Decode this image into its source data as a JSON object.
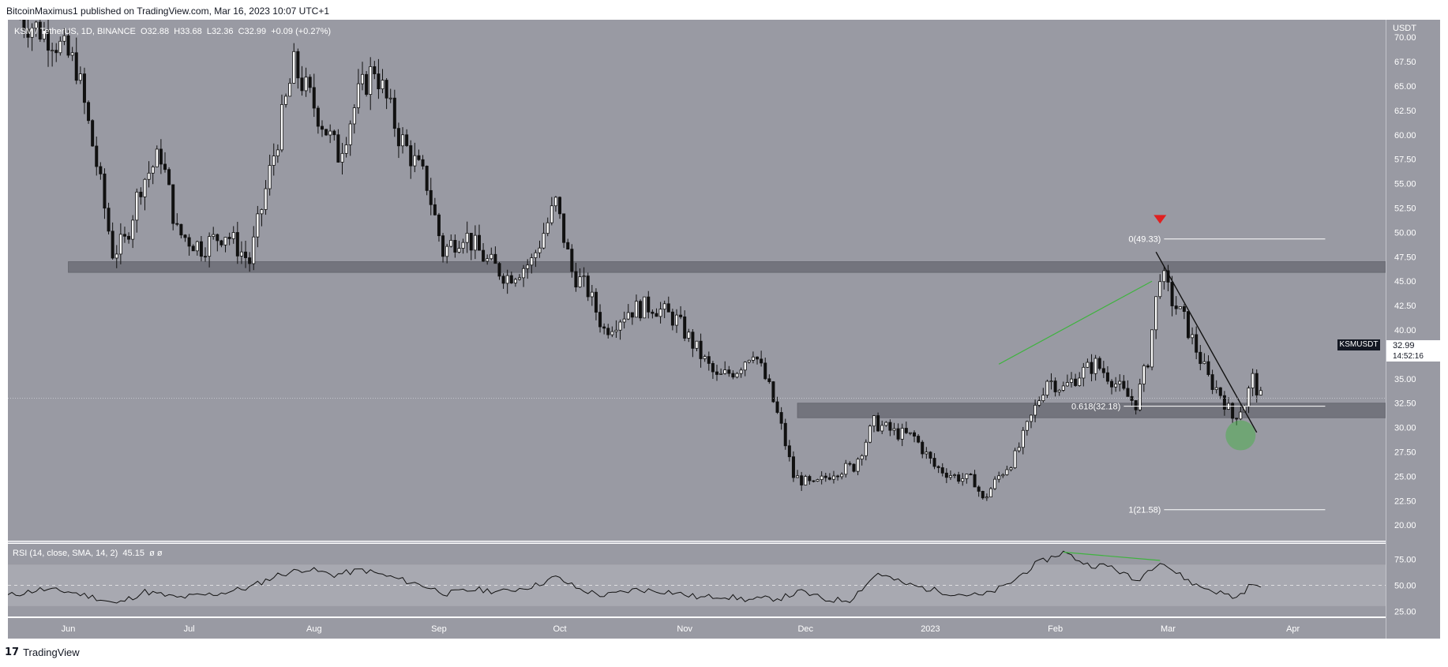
{
  "header": {
    "publisher": "BitcoinMaximus1 published on TradingView.com, Mar 16, 2023 10:07 UTC+1"
  },
  "legend": {
    "symbol": "KSM / TetherUS, 1D, BINANCE",
    "open_label": "O",
    "open": "32.88",
    "high_label": "H",
    "high": "33.68",
    "low_label": "L",
    "low": "32.36",
    "close_label": "C",
    "close": "32.99",
    "change": "+0.09 (+0.27%)"
  },
  "rsi_legend": {
    "label": "RSI (14, close, SMA, 14, 2)",
    "value": "45.15",
    "extra": "ø ø"
  },
  "price_axis": {
    "unit": "USDT",
    "ticker": "KSMUSDT",
    "last_price": "32.99",
    "countdown": "14:52:16"
  },
  "footer": {
    "brand": "TradingView",
    "logo_icon": "tradingview-logo-icon"
  },
  "colors": {
    "panel": "#999aa3",
    "candle": "#111111",
    "zone": "#6f7079",
    "green": "#3fb33f",
    "marker": "#e02020",
    "white": "#ffffff"
  },
  "chart_data": [
    {
      "type": "candlestick",
      "x_ticks": [
        "Jun",
        "Jul",
        "Aug",
        "Sep",
        "Oct",
        "Nov",
        "Dec",
        "2023",
        "Feb",
        "Mar",
        "Apr"
      ],
      "x_ticks_dates": [
        "2022-06-01",
        "2022-07-01",
        "2022-08-01",
        "2022-09-01",
        "2022-10-01",
        "2022-11-01",
        "2022-12-01",
        "2023-01-01",
        "2023-02-01",
        "2023-03-01",
        "2023-04-01"
      ],
      "y_ticks": [
        "20.00",
        "22.50",
        "25.00",
        "27.50",
        "30.00",
        "32.50",
        "35.00",
        "37.50",
        "40.00",
        "42.50",
        "45.00",
        "47.50",
        "50.00",
        "52.50",
        "55.00",
        "57.50",
        "60.00",
        "62.50",
        "65.00",
        "67.50",
        "70.00"
      ],
      "ylim": [
        18.4,
        71.8
      ],
      "xlim": [
        "2022-05-17",
        "2023-04-24"
      ],
      "price_path": [
        [
          "2022-05-20",
          72.0
        ],
        [
          "2022-05-28",
          70.0
        ],
        [
          "2022-06-03",
          67.0
        ],
        [
          "2022-06-08",
          57.0
        ],
        [
          "2022-06-12",
          48.0
        ],
        [
          "2022-06-15",
          49.0
        ],
        [
          "2022-06-19",
          55.0
        ],
        [
          "2022-06-24",
          58.0
        ],
        [
          "2022-06-28",
          50.0
        ],
        [
          "2022-07-04",
          48.5
        ],
        [
          "2022-07-10",
          50.0
        ],
        [
          "2022-07-16",
          47.0
        ],
        [
          "2022-07-22",
          58.0
        ],
        [
          "2022-07-27",
          67.0
        ],
        [
          "2022-08-01",
          63.0
        ],
        [
          "2022-08-07",
          58.0
        ],
        [
          "2022-08-12",
          64.0
        ],
        [
          "2022-08-16",
          67.0
        ],
        [
          "2022-08-22",
          60.0
        ],
        [
          "2022-08-29",
          55.0
        ],
        [
          "2022-09-02",
          48.0
        ],
        [
          "2022-09-07",
          50.0
        ],
        [
          "2022-09-13",
          47.0
        ],
        [
          "2022-09-18",
          45.5
        ],
        [
          "2022-09-24",
          47.0
        ],
        [
          "2022-09-30",
          53.0
        ],
        [
          "2022-10-04",
          46.0
        ],
        [
          "2022-10-08",
          44.0
        ],
        [
          "2022-10-12",
          40.0
        ],
        [
          "2022-10-18",
          42.0
        ],
        [
          "2022-10-24",
          42.5
        ],
        [
          "2022-10-30",
          41.0
        ],
        [
          "2022-11-04",
          38.0
        ],
        [
          "2022-11-09",
          35.0
        ],
        [
          "2022-11-14",
          36.0
        ],
        [
          "2022-11-18",
          38.0
        ],
        [
          "2022-11-22",
          34.0
        ],
        [
          "2022-11-25",
          30.0
        ],
        [
          "2022-11-28",
          25.0
        ],
        [
          "2022-12-03",
          24.0
        ],
        [
          "2022-12-08",
          25.5
        ],
        [
          "2022-12-13",
          26.0
        ],
        [
          "2022-12-18",
          30.5
        ],
        [
          "2022-12-23",
          29.5
        ],
        [
          "2022-12-28",
          29.0
        ],
        [
          "2023-01-02",
          26.0
        ],
        [
          "2023-01-07",
          25.0
        ],
        [
          "2023-01-12",
          24.5
        ],
        [
          "2023-01-14",
          22.5
        ],
        [
          "2023-01-18",
          25.0
        ],
        [
          "2023-01-22",
          27.0
        ],
        [
          "2023-01-26",
          31.0
        ],
        [
          "2023-01-30",
          35.0
        ],
        [
          "2023-02-03",
          34.0
        ],
        [
          "2023-02-07",
          35.5
        ],
        [
          "2023-02-11",
          36.5
        ],
        [
          "2023-02-15",
          35.0
        ],
        [
          "2023-02-18",
          33.5
        ],
        [
          "2023-02-21",
          32.5
        ],
        [
          "2023-02-24",
          37.0
        ],
        [
          "2023-02-27",
          46.0
        ],
        [
          "2023-03-02",
          43.0
        ],
        [
          "2023-03-05",
          41.0
        ],
        [
          "2023-03-08",
          38.0
        ],
        [
          "2023-03-11",
          35.0
        ],
        [
          "2023-03-14",
          33.5
        ],
        [
          "2023-03-17",
          31.0
        ],
        [
          "2023-03-20",
          32.5
        ],
        [
          "2023-03-22",
          35.0
        ],
        [
          "2023-03-24",
          33.0
        ]
      ],
      "resistance_zone": {
        "from": "2022-06-01",
        "to": "2023-04-24",
        "low": 45.9,
        "high": 47.0
      },
      "support_zone": {
        "from": "2022-11-29",
        "to": "2023-04-24",
        "low": 31.0,
        "high": 32.5
      },
      "fib_levels": [
        {
          "label": "0(49.33)",
          "value": 49.33,
          "from": "2023-02-28",
          "to": "2023-04-09"
        },
        {
          "label": "0.618(32.18)",
          "value": 32.18,
          "from": "2023-02-18",
          "to": "2023-04-09"
        },
        {
          "label": "1(21.58)",
          "value": 21.58,
          "from": "2023-02-28",
          "to": "2023-04-09"
        }
      ],
      "trendline": {
        "from": [
          "2023-02-26",
          48.0
        ],
        "to": [
          "2023-03-23",
          29.5
        ]
      },
      "divergence_line": {
        "from": [
          "2023-01-18",
          36.5
        ],
        "to": [
          "2023-02-25",
          45.0
        ]
      },
      "top_marker": {
        "date": "2023-02-27",
        "value": 51.3
      },
      "highlight_circle": {
        "date": "2023-03-19",
        "value": 29.2
      }
    },
    {
      "type": "line",
      "title": "RSI (14, close, SMA, 14, 2)",
      "y_ticks": [
        "25.00",
        "50.00",
        "75.00"
      ],
      "ylim": [
        20,
        90
      ],
      "band": [
        30,
        70
      ],
      "rsi_path": [
        [
          "2022-05-17",
          40
        ],
        [
          "2022-05-25",
          46
        ],
        [
          "2022-06-01",
          44
        ],
        [
          "2022-06-08",
          38
        ],
        [
          "2022-06-13",
          32
        ],
        [
          "2022-06-20",
          44
        ],
        [
          "2022-06-28",
          38
        ],
        [
          "2022-07-08",
          42
        ],
        [
          "2022-07-16",
          48
        ],
        [
          "2022-07-23",
          60
        ],
        [
          "2022-07-30",
          66
        ],
        [
          "2022-08-06",
          60
        ],
        [
          "2022-08-13",
          65
        ],
        [
          "2022-08-20",
          58
        ],
        [
          "2022-08-28",
          50
        ],
        [
          "2022-09-03",
          42
        ],
        [
          "2022-09-10",
          46
        ],
        [
          "2022-09-17",
          44
        ],
        [
          "2022-09-25",
          50
        ],
        [
          "2022-09-30",
          58
        ],
        [
          "2022-10-06",
          46
        ],
        [
          "2022-10-12",
          40
        ],
        [
          "2022-10-20",
          46
        ],
        [
          "2022-10-28",
          44
        ],
        [
          "2022-11-05",
          38
        ],
        [
          "2022-11-10",
          40
        ],
        [
          "2022-11-17",
          36
        ],
        [
          "2022-11-25",
          38
        ],
        [
          "2022-11-30",
          44
        ],
        [
          "2022-12-06",
          36
        ],
        [
          "2022-12-12",
          36
        ],
        [
          "2022-12-19",
          62
        ],
        [
          "2022-12-25",
          52
        ],
        [
          "2023-01-01",
          46
        ],
        [
          "2023-01-07",
          42
        ],
        [
          "2023-01-14",
          40
        ],
        [
          "2023-01-20",
          50
        ],
        [
          "2023-01-27",
          70
        ],
        [
          "2023-02-03",
          82
        ],
        [
          "2023-02-09",
          70
        ],
        [
          "2023-02-15",
          68
        ],
        [
          "2023-02-21",
          54
        ],
        [
          "2023-02-27",
          74
        ],
        [
          "2023-03-03",
          62
        ],
        [
          "2023-03-08",
          50
        ],
        [
          "2023-03-13",
          44
        ],
        [
          "2023-03-18",
          38
        ],
        [
          "2023-03-22",
          52
        ],
        [
          "2023-03-24",
          46
        ]
      ],
      "divergence_line": {
        "from": [
          "2023-02-03",
          82
        ],
        "to": [
          "2023-02-27",
          74
        ]
      }
    }
  ]
}
